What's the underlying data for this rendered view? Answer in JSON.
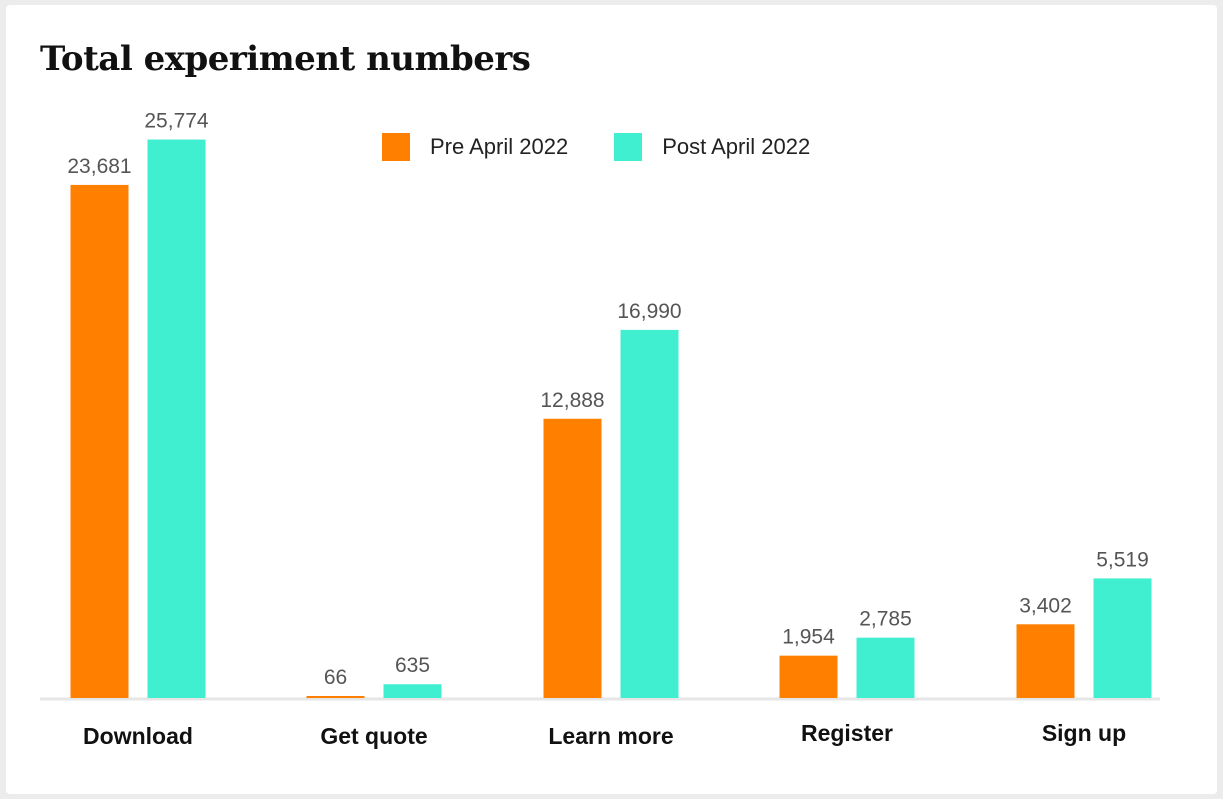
{
  "chart_data": {
    "type": "bar",
    "title": "Total experiment numbers",
    "categories": [
      "Download",
      "Get quote",
      "Learn more",
      "Register",
      "Sign up"
    ],
    "series": [
      {
        "name": "Pre April 2022",
        "color": "#ff7f00",
        "values": [
          23681,
          66,
          12888,
          1954,
          3402
        ],
        "labels": [
          "23,681",
          "66",
          "12,888",
          "1,954",
          "3,402"
        ]
      },
      {
        "name": "Post April 2022",
        "color": "#40efd0",
        "values": [
          25774,
          635,
          16990,
          2785,
          5519
        ],
        "labels": [
          "25,774",
          "635",
          "16,990",
          "2,785",
          "5,519"
        ]
      }
    ],
    "ylim": [
      0,
      27000
    ],
    "grid": false,
    "legend": "top-center"
  }
}
